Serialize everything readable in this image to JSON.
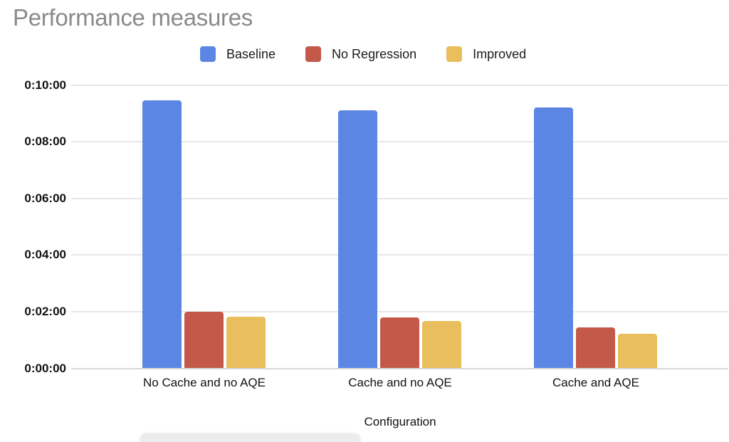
{
  "chart_data": {
    "type": "bar",
    "title": "Performance measures",
    "xlabel": "Configuration",
    "ylabel": "",
    "categories": [
      "No Cache and no AQE",
      "Cache and no AQE",
      "Cache and AQE"
    ],
    "series": [
      {
        "name": "Baseline",
        "color": "#5b86e4",
        "values_seconds": [
          568,
          547,
          552
        ],
        "values_display": [
          "0:09:28",
          "0:09:07",
          "0:09:12"
        ]
      },
      {
        "name": "No Regression",
        "color": "#c4594a",
        "values_seconds": [
          120,
          108,
          87
        ],
        "values_display": [
          "0:02:00",
          "0:01:48",
          "0:01:27"
        ]
      },
      {
        "name": "Improved",
        "color": "#e9be5c",
        "values_seconds": [
          110,
          100,
          73
        ],
        "values_display": [
          "0:01:50",
          "0:01:40",
          "0:01:13"
        ]
      }
    ],
    "y_axis": {
      "tick_labels": [
        "0:00:00",
        "0:02:00",
        "0:04:00",
        "0:06:00",
        "0:08:00",
        "0:10:00"
      ],
      "min_seconds": 0,
      "max_seconds": 600,
      "tick_interval_seconds": 120
    },
    "legend_position": "top",
    "grid": true,
    "colors": {
      "title_text": "#8a8a8a",
      "axis_text": "#111111",
      "legend_text": "#1a1a1a",
      "gridline": "#e7e7e7",
      "baseline": "#d9d9d9",
      "background": "#ffffff"
    }
  }
}
